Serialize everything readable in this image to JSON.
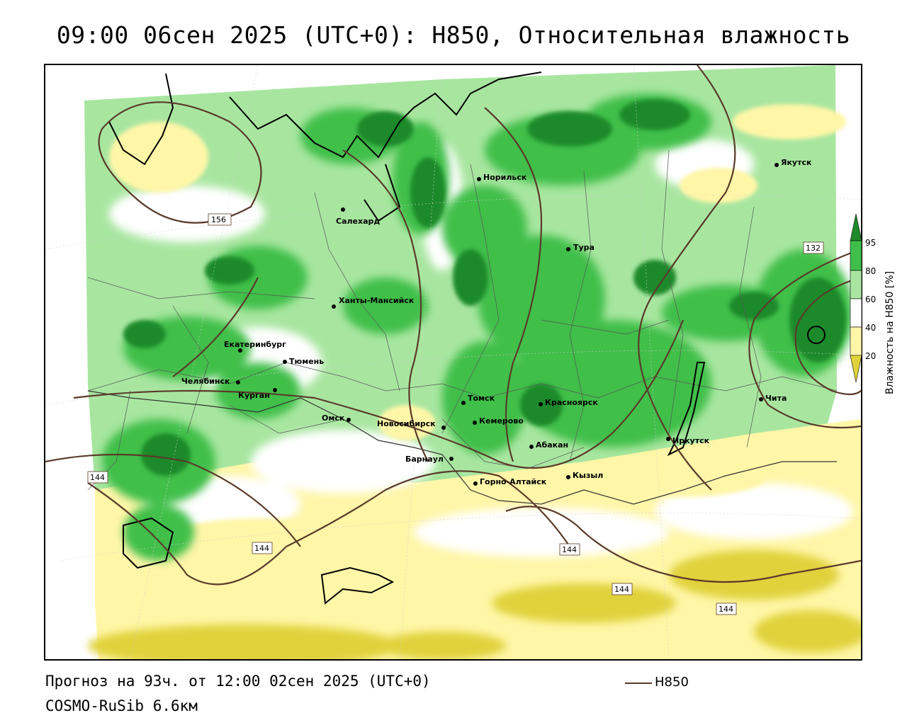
{
  "title": "09:00 06сен 2025 (UTC+0): H850, Относительная влажность",
  "footer": {
    "forecast": "Прогноз на 93ч. от 12:00 02сен 2025 (UTC+0)",
    "model": "COSMO-RuSib 6.6км",
    "line_legend": "H850"
  },
  "legend": {
    "title": "Влажность на H850 [%]",
    "ticks": [
      "95",
      "80",
      "60",
      "40",
      "20"
    ],
    "colors": [
      "#1f8a2a",
      "#3fbf4a",
      "#a8e6a0",
      "#ffffff",
      "#fff6a8",
      "#e0d23a"
    ]
  },
  "isoline_color": "#5a3a2a",
  "isoline_labels": [
    "156",
    "144",
    "144",
    "144",
    "144",
    "144",
    "132"
  ],
  "cities": [
    {
      "name": "Якутск"
    },
    {
      "name": "Норильск"
    },
    {
      "name": "Салехард"
    },
    {
      "name": "Тура"
    },
    {
      "name": "Ханты-Мансийск"
    },
    {
      "name": "Екатеринбург"
    },
    {
      "name": "Тюмень"
    },
    {
      "name": "Челябинск"
    },
    {
      "name": "Курган"
    },
    {
      "name": "Омск"
    },
    {
      "name": "Новосибирск"
    },
    {
      "name": "Томск"
    },
    {
      "name": "Кемерово"
    },
    {
      "name": "Красноярск"
    },
    {
      "name": "Абакан"
    },
    {
      "name": "Барнаул"
    },
    {
      "name": "Горно-Алтайск"
    },
    {
      "name": "Кызыл"
    },
    {
      "name": "Иркутск"
    },
    {
      "name": "Чита"
    }
  ]
}
